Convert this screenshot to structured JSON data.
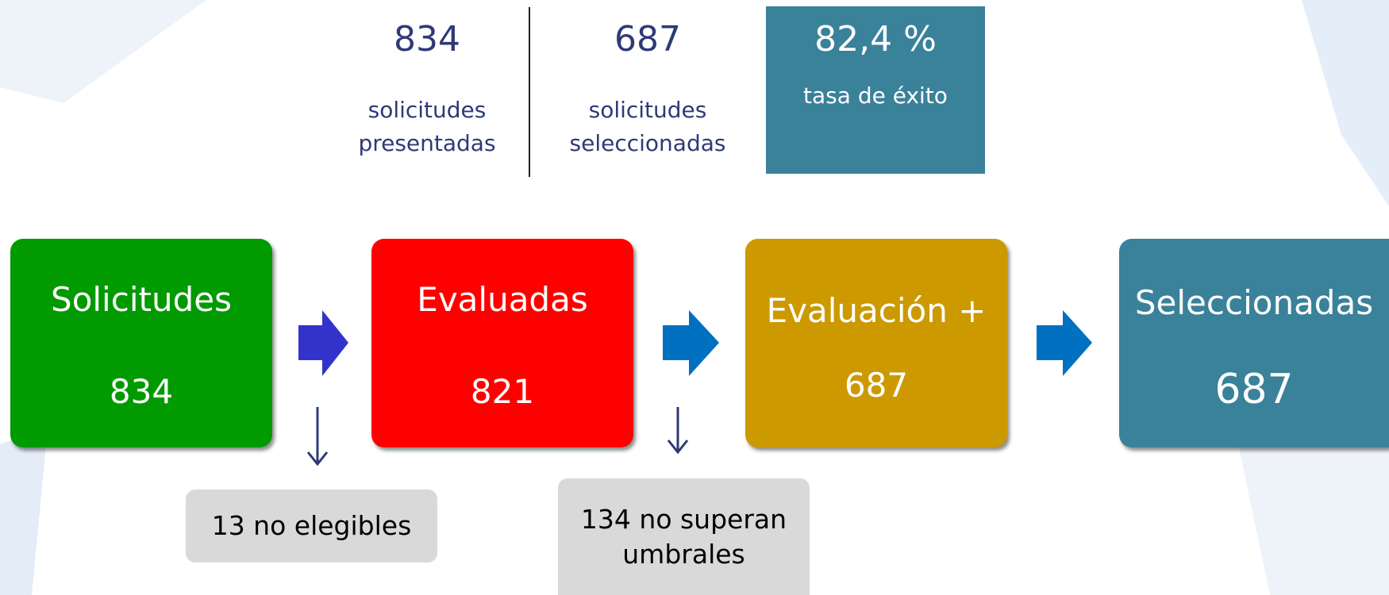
{
  "stats": [
    {
      "value": "834",
      "label": [
        "solicitudes",
        "presentadas"
      ]
    },
    {
      "value": "687",
      "label": [
        "solicitudes",
        "seleccionadas"
      ]
    },
    {
      "value": "82,4 %",
      "label": [
        "tasa de éxito"
      ]
    }
  ],
  "stages": [
    {
      "name": "Solicitudes",
      "value": 834
    },
    {
      "name": "Evaluadas",
      "value": 821
    },
    {
      "name": "Evaluación +",
      "value": 687
    },
    {
      "name": "Seleccionadas",
      "value": 687
    }
  ],
  "exclusions": [
    {
      "lines": [
        "13 no elegibles"
      ]
    },
    {
      "lines": [
        "134 no superan",
        "umbrales"
      ]
    }
  ]
}
